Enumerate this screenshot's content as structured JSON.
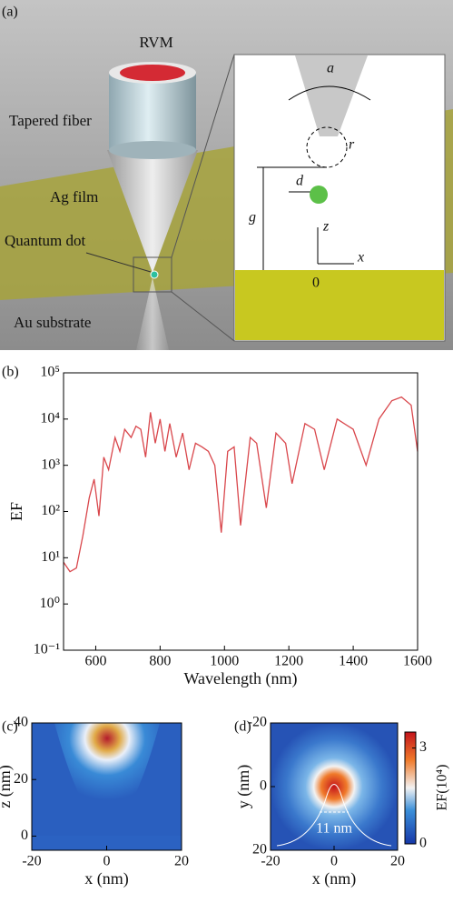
{
  "diagram": {
    "label": "(a)",
    "rvm": "RVM",
    "fiber": "Tapered fiber",
    "film": "Ag film",
    "dot": "Quantum dot",
    "substrate": "Au substrate",
    "inset": {
      "a": "a",
      "r": "r",
      "d": "d",
      "g": "g",
      "z": "z",
      "x": "x",
      "origin": "0"
    }
  },
  "chart_data": [
    {
      "panel": "(b)",
      "type": "line",
      "xlabel": "Wavelength (nm)",
      "ylabel": "EF",
      "color": "#d9474c",
      "log_y": true,
      "x": [
        500,
        520,
        540,
        560,
        580,
        595,
        610,
        625,
        640,
        660,
        675,
        690,
        710,
        725,
        740,
        755,
        770,
        785,
        800,
        815,
        830,
        850,
        870,
        890,
        910,
        930,
        950,
        970,
        990,
        1010,
        1030,
        1050,
        1080,
        1100,
        1130,
        1160,
        1190,
        1210,
        1250,
        1280,
        1310,
        1350,
        1400,
        1440,
        1480,
        1520,
        1550,
        1580,
        1600
      ],
      "values": [
        8,
        5,
        6,
        30,
        200,
        500,
        80,
        1500,
        800,
        4000,
        2000,
        6000,
        4000,
        7000,
        6000,
        1500,
        14000,
        3000,
        10000,
        2000,
        8000,
        1500,
        5000,
        800,
        3000,
        2500,
        2000,
        1000,
        35,
        2000,
        2500,
        50,
        4000,
        3000,
        120,
        5000,
        3000,
        400,
        8000,
        6000,
        800,
        10000,
        6000,
        1000,
        10000,
        25000,
        30000,
        20000,
        2000
      ],
      "xlim": [
        500,
        1600
      ],
      "xticks": [
        600,
        800,
        1000,
        1200,
        1400,
        1600
      ],
      "ylim": [
        0.1,
        100000
      ],
      "yticks": [
        {
          "value": 0.1,
          "label": "10⁻¹"
        },
        {
          "value": 1,
          "label": "10⁰"
        },
        {
          "value": 10,
          "label": "10¹"
        },
        {
          "value": 100,
          "label": "10²"
        },
        {
          "value": 1000,
          "label": "10³"
        },
        {
          "value": 10000,
          "label": "10⁴"
        },
        {
          "value": 100000,
          "label": "10⁵"
        }
      ]
    },
    {
      "panel": "(c)",
      "type": "heatmap",
      "xlabel": "x (nm)",
      "ylabel": "z (nm)",
      "xlim": [
        -20,
        20
      ],
      "xticks": [
        -20,
        0,
        20
      ],
      "ylim": [
        -5,
        40
      ],
      "yticks": [
        0,
        20,
        40
      ]
    },
    {
      "panel": "(d)",
      "type": "heatmap",
      "xlabel": "x (nm)",
      "ylabel": "y (nm)",
      "y_inverted": true,
      "xlim": [
        -20,
        20
      ],
      "xticks": [
        -20,
        0,
        20
      ],
      "ylim": [
        -20,
        20
      ],
      "yticks": [
        -20,
        0,
        20
      ],
      "annotation": "11 nm",
      "colorbar": {
        "label": "EF(10⁴)",
        "lim": [
          0,
          3.5
        ],
        "ticks": [
          0,
          3
        ]
      }
    }
  ]
}
